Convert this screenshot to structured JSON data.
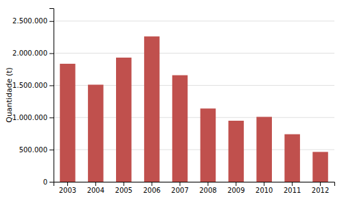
{
  "chart_data": {
    "type": "bar",
    "categories": [
      "2003",
      "2004",
      "2005",
      "2006",
      "2007",
      "2008",
      "2009",
      "2010",
      "2011",
      "2012"
    ],
    "values": [
      1836153,
      1510542,
      1931916,
      2261223,
      1658000,
      1140000,
      950000,
      1010000,
      740000,
      465000
    ],
    "color": "#c0504d",
    "ylabel": "Quantidade (t)",
    "ylim": [
      0,
      2700000
    ],
    "yticks": [
      0,
      {
        "value": 500000,
        "label": "500.000"
      },
      {
        "value": 1000000,
        "label": "1.000.000"
      },
      {
        "value": 1500000,
        "label": "1.500.000"
      },
      {
        "value": 2000000,
        "label": "2.000.000"
      },
      {
        "value": 2500000,
        "label": "2.500.000"
      }
    ],
    "grid": true
  }
}
